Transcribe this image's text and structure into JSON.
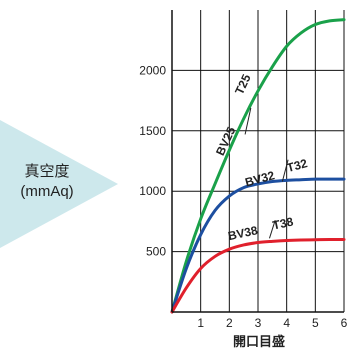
{
  "chart_data": {
    "type": "line",
    "title": "",
    "xlabel": "開口目盛",
    "ylabel_line1": "真空度",
    "ylabel_line2": "(mmAq)",
    "xlim": [
      0,
      6
    ],
    "ylim": [
      0,
      2500
    ],
    "x_ticks": [
      1,
      2,
      3,
      4,
      5,
      6
    ],
    "y_ticks": [
      500,
      1000,
      1500,
      2000
    ],
    "grid": true,
    "series": [
      {
        "name": "BV25 / T25",
        "label_left": "BV25",
        "label_right": "T25",
        "color": "#1aa14a",
        "x": [
          0,
          0.5,
          1,
          1.5,
          2,
          2.5,
          3,
          3.5,
          4,
          4.5,
          5,
          5.5,
          6
        ],
        "y": [
          0,
          420,
          770,
          1060,
          1340,
          1600,
          1830,
          2030,
          2200,
          2310,
          2380,
          2410,
          2420
        ]
      },
      {
        "name": "BV32 / T32",
        "label_left": "BV32",
        "label_right": "T32",
        "color": "#1d4fa0",
        "x": [
          0,
          0.5,
          1,
          1.5,
          2,
          2.5,
          3,
          3.5,
          4,
          4.5,
          5,
          5.5,
          6
        ],
        "y": [
          0,
          360,
          640,
          840,
          960,
          1030,
          1060,
          1080,
          1090,
          1095,
          1100,
          1100,
          1100
        ]
      },
      {
        "name": "BV38 / T38",
        "label_left": "BV38",
        "label_right": "T38",
        "color": "#e0202c",
        "x": [
          0,
          0.5,
          1,
          1.5,
          2,
          2.5,
          3,
          3.5,
          4,
          4.5,
          5,
          5.5,
          6
        ],
        "y": [
          0,
          200,
          360,
          460,
          520,
          555,
          575,
          585,
          592,
          596,
          598,
          600,
          600
        ]
      }
    ],
    "arrow_color": "#cde8ec"
  }
}
